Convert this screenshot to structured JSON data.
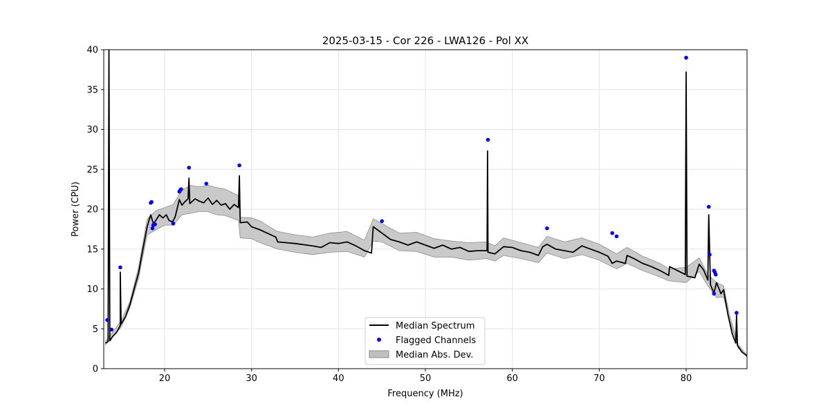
{
  "chart_data": {
    "type": "line",
    "title": "2025-03-15 - Cor 226 - LWA126 - Pol XX",
    "xlabel": "Frequency (MHz)",
    "ylabel": "Power (CPU)",
    "xlim": [
      13.0,
      87.0
    ],
    "ylim": [
      0,
      40
    ],
    "xticks": [
      20,
      30,
      40,
      50,
      60,
      70,
      80
    ],
    "yticks": [
      0,
      5,
      10,
      15,
      20,
      25,
      30,
      35,
      40
    ],
    "grid": true,
    "legend_position": "lower-center",
    "colors": {
      "median": "#000000",
      "flagged": "#0000ff",
      "mad_fill": "#bfbfbf",
      "mad_edge": "#8c8c8c",
      "grid": "#e3e3e3"
    },
    "series": [
      {
        "name": "Median Spectrum",
        "kind": "line",
        "points": [
          [
            13.2,
            3.2
          ],
          [
            13.5,
            3.4
          ],
          [
            13.6,
            40.0
          ],
          [
            13.7,
            3.5
          ],
          [
            14.0,
            4.0
          ],
          [
            14.5,
            4.6
          ],
          [
            14.9,
            5.4
          ],
          [
            14.9,
            12.1
          ],
          [
            15.0,
            5.6
          ],
          [
            15.5,
            6.5
          ],
          [
            16.0,
            8.0
          ],
          [
            16.5,
            10.0
          ],
          [
            17.0,
            12.0
          ],
          [
            17.5,
            15.0
          ],
          [
            18.0,
            17.8
          ],
          [
            18.4,
            19.3
          ],
          [
            18.7,
            18.2
          ],
          [
            19.0,
            18.6
          ],
          [
            19.4,
            19.3
          ],
          [
            19.8,
            18.9
          ],
          [
            20.2,
            19.3
          ],
          [
            20.5,
            18.6
          ],
          [
            20.9,
            18.4
          ],
          [
            21.2,
            19.0
          ],
          [
            21.7,
            21.2
          ],
          [
            22.0,
            20.5
          ],
          [
            22.3,
            20.9
          ],
          [
            22.7,
            21.3
          ],
          [
            22.8,
            23.9
          ],
          [
            22.9,
            20.7
          ],
          [
            23.5,
            21.3
          ],
          [
            24.0,
            21.0
          ],
          [
            24.5,
            20.8
          ],
          [
            25.0,
            21.4
          ],
          [
            25.5,
            20.6
          ],
          [
            26.0,
            21.1
          ],
          [
            26.5,
            20.5
          ],
          [
            27.0,
            20.7
          ],
          [
            27.5,
            20.0
          ],
          [
            28.0,
            20.6
          ],
          [
            28.5,
            20.2
          ],
          [
            28.6,
            24.2
          ],
          [
            28.7,
            18.3
          ],
          [
            29.5,
            18.4
          ],
          [
            30.0,
            17.8
          ],
          [
            31.0,
            17.4
          ],
          [
            32.0,
            16.9
          ],
          [
            32.8,
            16.5
          ],
          [
            33.0,
            15.9
          ],
          [
            35.0,
            15.7
          ],
          [
            37.0,
            15.4
          ],
          [
            38.0,
            15.2
          ],
          [
            39.0,
            15.8
          ],
          [
            40.0,
            15.7
          ],
          [
            41.0,
            15.9
          ],
          [
            42.0,
            15.4
          ],
          [
            43.0,
            14.8
          ],
          [
            43.8,
            14.5
          ],
          [
            44.0,
            17.8
          ],
          [
            45.0,
            17.0
          ],
          [
            46.0,
            16.2
          ],
          [
            47.0,
            15.9
          ],
          [
            48.0,
            15.5
          ],
          [
            49.0,
            15.9
          ],
          [
            50.0,
            15.5
          ],
          [
            51.0,
            15.1
          ],
          [
            52.0,
            15.5
          ],
          [
            53.0,
            15.0
          ],
          [
            54.0,
            15.2
          ],
          [
            55.0,
            14.7
          ],
          [
            56.0,
            14.8
          ],
          [
            57.1,
            14.8
          ],
          [
            57.15,
            27.3
          ],
          [
            57.2,
            14.6
          ],
          [
            58.0,
            14.4
          ],
          [
            59.0,
            15.3
          ],
          [
            60.0,
            15.2
          ],
          [
            61.0,
            14.8
          ],
          [
            62.0,
            14.6
          ],
          [
            63.0,
            14.2
          ],
          [
            63.5,
            15.3
          ],
          [
            64.0,
            15.6
          ],
          [
            65.0,
            15.0
          ],
          [
            66.0,
            14.8
          ],
          [
            67.0,
            14.6
          ],
          [
            68.0,
            15.4
          ],
          [
            69.0,
            15.0
          ],
          [
            70.0,
            14.6
          ],
          [
            71.0,
            14.1
          ],
          [
            71.5,
            13.2
          ],
          [
            72.0,
            13.5
          ],
          [
            73.0,
            13.2
          ],
          [
            73.2,
            14.2
          ],
          [
            74.0,
            13.8
          ],
          [
            75.0,
            13.2
          ],
          [
            76.0,
            12.8
          ],
          [
            77.0,
            12.3
          ],
          [
            78.0,
            11.7
          ],
          [
            78.1,
            12.8
          ],
          [
            79.0,
            12.3
          ],
          [
            79.9,
            11.8
          ],
          [
            80.0,
            37.2
          ],
          [
            80.1,
            11.6
          ],
          [
            81.0,
            11.4
          ],
          [
            81.5,
            13.1
          ],
          [
            82.0,
            12.4
          ],
          [
            82.5,
            11.1
          ],
          [
            82.6,
            19.3
          ],
          [
            82.8,
            10.5
          ],
          [
            83.2,
            9.5
          ],
          [
            83.5,
            10.8
          ],
          [
            84.0,
            9.4
          ],
          [
            84.3,
            9.9
          ],
          [
            84.8,
            6.8
          ],
          [
            85.3,
            4.4
          ],
          [
            85.7,
            3.2
          ],
          [
            85.8,
            6.7
          ],
          [
            85.9,
            2.9
          ],
          [
            86.4,
            2.1
          ],
          [
            87.0,
            1.6
          ]
        ]
      },
      {
        "name": "Flagged Channels",
        "kind": "scatter",
        "points": [
          [
            13.4,
            6.1
          ],
          [
            13.9,
            4.9
          ],
          [
            14.9,
            12.7
          ],
          [
            18.4,
            20.8
          ],
          [
            18.5,
            20.9
          ],
          [
            18.6,
            17.6
          ],
          [
            18.7,
            18.0
          ],
          [
            18.9,
            18.1
          ],
          [
            21.0,
            18.2
          ],
          [
            21.7,
            22.2
          ],
          [
            21.8,
            22.4
          ],
          [
            21.9,
            22.5
          ],
          [
            22.8,
            25.2
          ],
          [
            24.8,
            23.2
          ],
          [
            28.6,
            25.5
          ],
          [
            45.0,
            18.5
          ],
          [
            57.2,
            28.7
          ],
          [
            64.0,
            17.6
          ],
          [
            71.5,
            17.0
          ],
          [
            72.0,
            16.6
          ],
          [
            80.0,
            39.0
          ],
          [
            82.6,
            20.3
          ],
          [
            82.7,
            14.3
          ],
          [
            83.2,
            12.3
          ],
          [
            83.3,
            12.1
          ],
          [
            83.4,
            11.8
          ],
          [
            83.2,
            9.4
          ],
          [
            85.8,
            7.0
          ]
        ]
      },
      {
        "name": "Median Abs. Dev.",
        "kind": "band",
        "points": [
          [
            13.2,
            3.0,
            3.4
          ],
          [
            15.0,
            5.2,
            6.0
          ],
          [
            16.0,
            7.6,
            8.4
          ],
          [
            17.0,
            11.3,
            12.7
          ],
          [
            18.0,
            16.8,
            18.8
          ],
          [
            19.0,
            17.4,
            19.8
          ],
          [
            20.0,
            18.0,
            20.2
          ],
          [
            21.0,
            18.0,
            20.6
          ],
          [
            22.0,
            19.3,
            22.4
          ],
          [
            23.0,
            19.5,
            23.0
          ],
          [
            24.0,
            19.7,
            22.8
          ],
          [
            25.0,
            19.7,
            23.0
          ],
          [
            26.0,
            19.3,
            22.7
          ],
          [
            27.0,
            19.2,
            22.5
          ],
          [
            28.5,
            18.6,
            21.7
          ],
          [
            28.7,
            16.4,
            19.0
          ],
          [
            30.0,
            16.3,
            18.9
          ],
          [
            31.0,
            15.8,
            18.5
          ],
          [
            33.0,
            15.0,
            17.2
          ],
          [
            35.0,
            14.6,
            16.8
          ],
          [
            37.0,
            14.3,
            16.5
          ],
          [
            39.0,
            14.6,
            17.0
          ],
          [
            41.0,
            14.7,
            17.2
          ],
          [
            43.0,
            14.0,
            16.1
          ],
          [
            44.0,
            16.0,
            18.8
          ],
          [
            45.0,
            15.9,
            18.2
          ],
          [
            47.0,
            14.8,
            17.0
          ],
          [
            49.0,
            14.7,
            17.1
          ],
          [
            51.0,
            14.0,
            16.3
          ],
          [
            53.0,
            14.0,
            16.0
          ],
          [
            55.0,
            13.6,
            15.8
          ],
          [
            57.0,
            13.8,
            15.9
          ],
          [
            58.0,
            13.5,
            15.4
          ],
          [
            59.0,
            14.2,
            16.4
          ],
          [
            61.0,
            13.8,
            15.8
          ],
          [
            63.0,
            13.3,
            15.2
          ],
          [
            64.0,
            14.5,
            16.6
          ],
          [
            66.0,
            13.8,
            15.9
          ],
          [
            68.0,
            14.3,
            16.4
          ],
          [
            70.0,
            13.6,
            15.6
          ],
          [
            72.0,
            12.5,
            14.4
          ],
          [
            73.2,
            13.2,
            15.2
          ],
          [
            75.0,
            12.3,
            14.1
          ],
          [
            77.0,
            11.5,
            13.2
          ],
          [
            78.0,
            11.0,
            12.5
          ],
          [
            80.0,
            10.8,
            12.7
          ],
          [
            81.5,
            12.2,
            13.9
          ],
          [
            82.5,
            10.4,
            11.8
          ],
          [
            83.5,
            8.9,
            10.8
          ],
          [
            84.3,
            9.0,
            10.4
          ],
          [
            85.0,
            6.0,
            6.7
          ],
          [
            86.0,
            2.6,
            3.0
          ],
          [
            87.0,
            1.5,
            1.7
          ]
        ]
      }
    ]
  }
}
